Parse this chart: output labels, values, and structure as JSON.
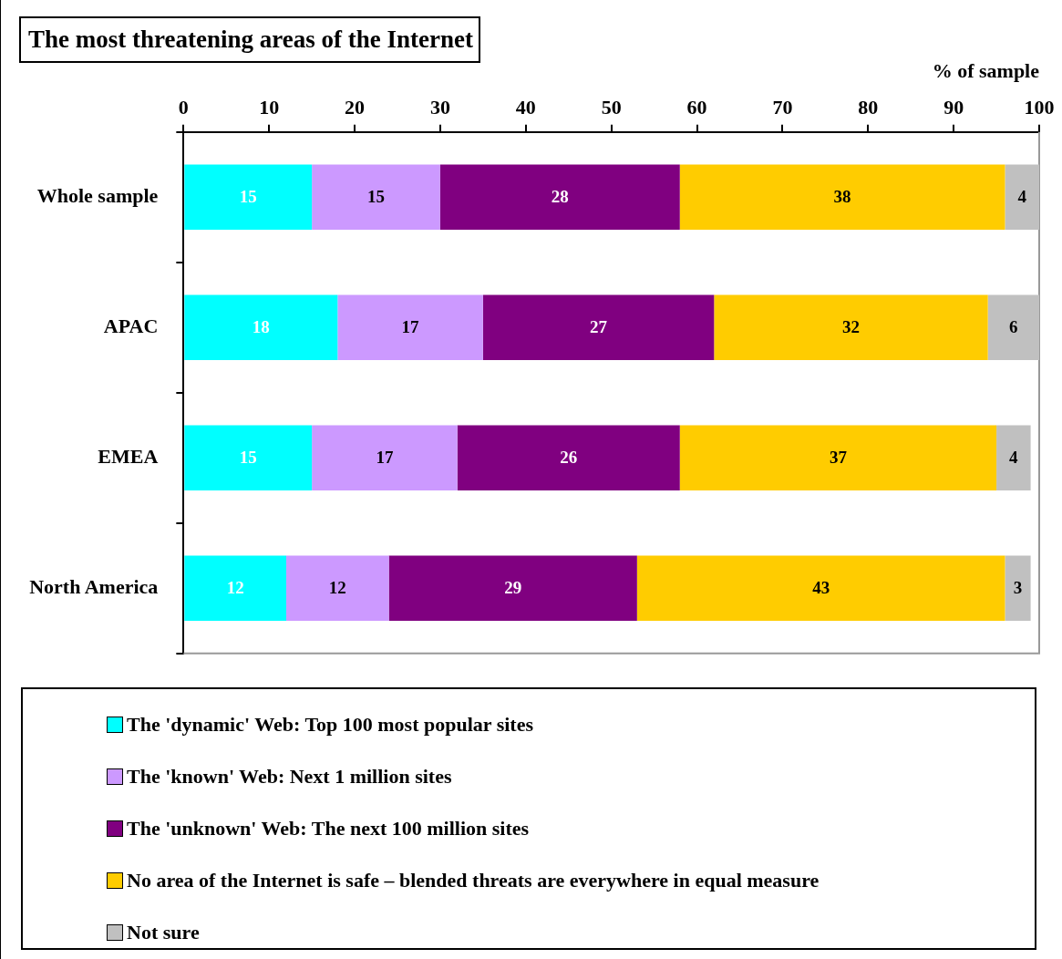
{
  "chart_data": {
    "type": "bar",
    "orientation": "horizontal",
    "stacked": true,
    "title": "The most threatening areas of the Internet",
    "xlabel": "% of sample",
    "categories": [
      "Whole sample",
      "APAC",
      "EMEA",
      "North America"
    ],
    "series": [
      {
        "name": "The 'dynamic' Web: Top 100 most popular sites",
        "color": "#00ffff",
        "values": [
          15,
          18,
          15,
          12
        ]
      },
      {
        "name": "The 'known' Web: Next 1 million sites",
        "color": "#cc99ff",
        "values": [
          15,
          17,
          17,
          12
        ]
      },
      {
        "name": "The 'unknown' Web: The next 100 million sites",
        "color": "#800080",
        "values": [
          28,
          27,
          26,
          29
        ]
      },
      {
        "name": "No area of the Internet is safe – blended threats are everywhere in equal measure",
        "color": "#ffcc00",
        "values": [
          38,
          32,
          37,
          43
        ]
      },
      {
        "name": "Not sure",
        "color": "#c0c0c0",
        "values": [
          4,
          6,
          4,
          3
        ]
      }
    ],
    "xlim": [
      0,
      100
    ],
    "xticks": [
      0,
      10,
      20,
      30,
      40,
      50,
      60,
      70,
      80,
      90,
      100
    ],
    "data_labels": true,
    "grid": false,
    "legend": "bottom"
  }
}
